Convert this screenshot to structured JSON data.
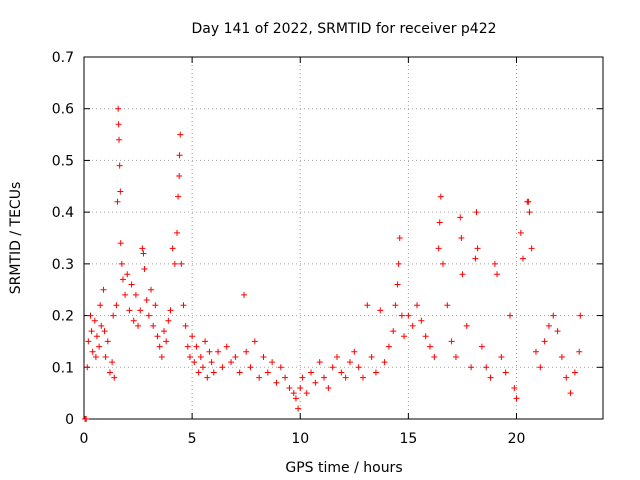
{
  "chart_data": {
    "type": "scatter",
    "title": "Day 141 of 2022, SRMTID for receiver p422",
    "xlabel": "GPS time / hours",
    "ylabel": "SRMTID / TECUs",
    "xlim": [
      0,
      24
    ],
    "ylim": [
      0,
      0.7
    ],
    "xticks": [
      0,
      5,
      10,
      15,
      20
    ],
    "xtick_labels": [
      "0",
      "5",
      "10",
      "15",
      "20"
    ],
    "yticks": [
      0,
      0.1,
      0.2,
      0.3,
      0.4,
      0.5,
      0.6,
      0.7
    ],
    "ytick_labels": [
      "0",
      "0.1",
      "0.2",
      "0.3",
      "0.4",
      "0.5",
      "0.6",
      "0.7"
    ],
    "grid": true,
    "marker": "+",
    "color": "#ff0000",
    "series": [
      {
        "name": "SRMTID",
        "points": [
          [
            0.05,
            0.0
          ],
          [
            0.1,
            0.0
          ],
          [
            0.15,
            0.1
          ],
          [
            0.2,
            0.15
          ],
          [
            0.3,
            0.2
          ],
          [
            0.35,
            0.17
          ],
          [
            0.4,
            0.13
          ],
          [
            0.5,
            0.19
          ],
          [
            0.55,
            0.12
          ],
          [
            0.6,
            0.16
          ],
          [
            0.7,
            0.14
          ],
          [
            0.75,
            0.22
          ],
          [
            0.8,
            0.18
          ],
          [
            0.9,
            0.25
          ],
          [
            0.95,
            0.17
          ],
          [
            1.0,
            0.12
          ],
          [
            1.1,
            0.15
          ],
          [
            1.2,
            0.09
          ],
          [
            1.3,
            0.11
          ],
          [
            1.35,
            0.2
          ],
          [
            1.4,
            0.08
          ],
          [
            1.5,
            0.22
          ],
          [
            1.55,
            0.42
          ],
          [
            1.58,
            0.6
          ],
          [
            1.6,
            0.57
          ],
          [
            1.62,
            0.54
          ],
          [
            1.65,
            0.49
          ],
          [
            1.68,
            0.44
          ],
          [
            1.7,
            0.34
          ],
          [
            1.75,
            0.3
          ],
          [
            1.8,
            0.27
          ],
          [
            1.9,
            0.24
          ],
          [
            2.0,
            0.28
          ],
          [
            2.1,
            0.21
          ],
          [
            2.2,
            0.26
          ],
          [
            2.3,
            0.19
          ],
          [
            2.4,
            0.24
          ],
          [
            2.5,
            0.18
          ],
          [
            2.6,
            0.21
          ],
          [
            2.7,
            0.33
          ],
          [
            2.75,
            0.32
          ],
          [
            2.8,
            0.29
          ],
          [
            2.9,
            0.23
          ],
          [
            3.0,
            0.2
          ],
          [
            3.1,
            0.25
          ],
          [
            3.2,
            0.18
          ],
          [
            3.3,
            0.22
          ],
          [
            3.4,
            0.16
          ],
          [
            3.5,
            0.14
          ],
          [
            3.6,
            0.12
          ],
          [
            3.7,
            0.17
          ],
          [
            3.8,
            0.15
          ],
          [
            3.9,
            0.19
          ],
          [
            4.0,
            0.21
          ],
          [
            4.1,
            0.33
          ],
          [
            4.2,
            0.3
          ],
          [
            4.3,
            0.36
          ],
          [
            4.35,
            0.43
          ],
          [
            4.4,
            0.47
          ],
          [
            4.42,
            0.51
          ],
          [
            4.45,
            0.55
          ],
          [
            4.5,
            0.3
          ],
          [
            4.6,
            0.22
          ],
          [
            4.7,
            0.18
          ],
          [
            4.8,
            0.14
          ],
          [
            4.9,
            0.12
          ],
          [
            5.0,
            0.16
          ],
          [
            5.1,
            0.11
          ],
          [
            5.2,
            0.14
          ],
          [
            5.3,
            0.09
          ],
          [
            5.4,
            0.12
          ],
          [
            5.5,
            0.1
          ],
          [
            5.6,
            0.15
          ],
          [
            5.7,
            0.08
          ],
          [
            5.8,
            0.13
          ],
          [
            5.9,
            0.11
          ],
          [
            6.0,
            0.09
          ],
          [
            6.2,
            0.13
          ],
          [
            6.4,
            0.1
          ],
          [
            6.6,
            0.14
          ],
          [
            6.8,
            0.11
          ],
          [
            7.0,
            0.12
          ],
          [
            7.2,
            0.09
          ],
          [
            7.4,
            0.24
          ],
          [
            7.5,
            0.13
          ],
          [
            7.7,
            0.1
          ],
          [
            7.9,
            0.15
          ],
          [
            8.1,
            0.08
          ],
          [
            8.3,
            0.12
          ],
          [
            8.5,
            0.09
          ],
          [
            8.7,
            0.11
          ],
          [
            8.9,
            0.07
          ],
          [
            9.1,
            0.1
          ],
          [
            9.3,
            0.08
          ],
          [
            9.5,
            0.06
          ],
          [
            9.7,
            0.05
          ],
          [
            9.8,
            0.04
          ],
          [
            9.9,
            0.02
          ],
          [
            10.0,
            0.06
          ],
          [
            10.1,
            0.08
          ],
          [
            10.3,
            0.05
          ],
          [
            10.5,
            0.09
          ],
          [
            10.7,
            0.07
          ],
          [
            10.9,
            0.11
          ],
          [
            11.1,
            0.08
          ],
          [
            11.3,
            0.06
          ],
          [
            11.5,
            0.1
          ],
          [
            11.7,
            0.12
          ],
          [
            11.9,
            0.09
          ],
          [
            12.1,
            0.08
          ],
          [
            12.3,
            0.11
          ],
          [
            12.5,
            0.13
          ],
          [
            12.7,
            0.1
          ],
          [
            12.9,
            0.08
          ],
          [
            13.1,
            0.22
          ],
          [
            13.3,
            0.12
          ],
          [
            13.5,
            0.09
          ],
          [
            13.7,
            0.21
          ],
          [
            13.9,
            0.11
          ],
          [
            14.1,
            0.14
          ],
          [
            14.3,
            0.17
          ],
          [
            14.4,
            0.22
          ],
          [
            14.5,
            0.26
          ],
          [
            14.55,
            0.3
          ],
          [
            14.6,
            0.35
          ],
          [
            14.7,
            0.2
          ],
          [
            14.8,
            0.16
          ],
          [
            15.0,
            0.2
          ],
          [
            15.2,
            0.18
          ],
          [
            15.4,
            0.22
          ],
          [
            15.6,
            0.19
          ],
          [
            15.8,
            0.16
          ],
          [
            16.0,
            0.14
          ],
          [
            16.2,
            0.12
          ],
          [
            16.4,
            0.33
          ],
          [
            16.45,
            0.38
          ],
          [
            16.5,
            0.43
          ],
          [
            16.6,
            0.3
          ],
          [
            16.8,
            0.22
          ],
          [
            17.0,
            0.15
          ],
          [
            17.2,
            0.12
          ],
          [
            17.4,
            0.39
          ],
          [
            17.45,
            0.35
          ],
          [
            17.5,
            0.28
          ],
          [
            17.7,
            0.18
          ],
          [
            17.9,
            0.1
          ],
          [
            18.1,
            0.31
          ],
          [
            18.15,
            0.4
          ],
          [
            18.2,
            0.33
          ],
          [
            18.4,
            0.14
          ],
          [
            18.6,
            0.1
          ],
          [
            18.8,
            0.08
          ],
          [
            19.0,
            0.3
          ],
          [
            19.1,
            0.28
          ],
          [
            19.3,
            0.12
          ],
          [
            19.5,
            0.09
          ],
          [
            19.7,
            0.2
          ],
          [
            19.9,
            0.06
          ],
          [
            20.0,
            0.04
          ],
          [
            20.2,
            0.36
          ],
          [
            20.3,
            0.31
          ],
          [
            20.5,
            0.42
          ],
          [
            20.55,
            0.42
          ],
          [
            20.6,
            0.4
          ],
          [
            20.7,
            0.33
          ],
          [
            20.9,
            0.13
          ],
          [
            21.1,
            0.1
          ],
          [
            21.3,
            0.15
          ],
          [
            21.5,
            0.18
          ],
          [
            21.7,
            0.2
          ],
          [
            21.9,
            0.17
          ],
          [
            22.1,
            0.12
          ],
          [
            22.3,
            0.08
          ],
          [
            22.5,
            0.05
          ],
          [
            22.7,
            0.09
          ],
          [
            22.9,
            0.13
          ],
          [
            22.95,
            0.2
          ]
        ]
      }
    ]
  }
}
